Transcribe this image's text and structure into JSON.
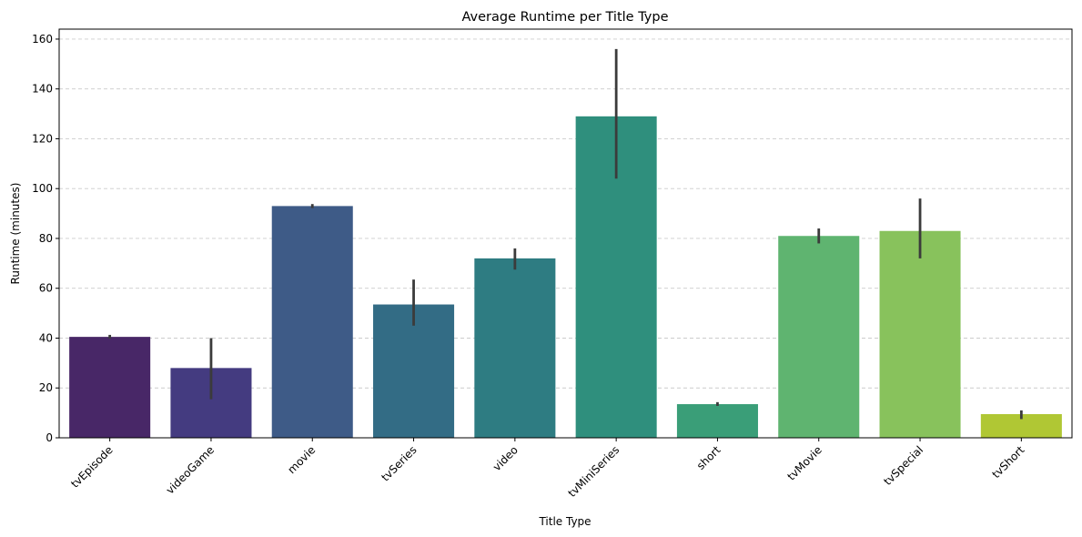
{
  "chart_data": {
    "type": "bar",
    "title": "Average Runtime per Title Type",
    "xlabel": "Title Type",
    "ylabel": "Runtime (minutes)",
    "categories": [
      "tvEpisode",
      "videoGame",
      "movie",
      "tvSeries",
      "video",
      "tvMiniSeries",
      "short",
      "tvMovie",
      "tvSpecial",
      "tvShort"
    ],
    "values": [
      40.5,
      28,
      93,
      53.5,
      72,
      129,
      13.5,
      81,
      83,
      9.5
    ],
    "error_low": [
      39.8,
      15.5,
      92.2,
      45,
      67.5,
      104,
      12.8,
      78,
      72,
      7.5
    ],
    "error_high": [
      41.3,
      40,
      93.8,
      63.5,
      76,
      156,
      14.3,
      84,
      96,
      11
    ],
    "colors": [
      "#482767",
      "#443b80",
      "#3e5b87",
      "#336c85",
      "#2e7c82",
      "#2f8f7d",
      "#3a9e78",
      "#5fb470",
      "#88c25c",
      "#b0c734"
    ],
    "ylim": [
      0,
      164
    ],
    "yticks": [
      0,
      20,
      40,
      60,
      80,
      100,
      120,
      140,
      160
    ],
    "grid": "y",
    "legend": "none"
  }
}
